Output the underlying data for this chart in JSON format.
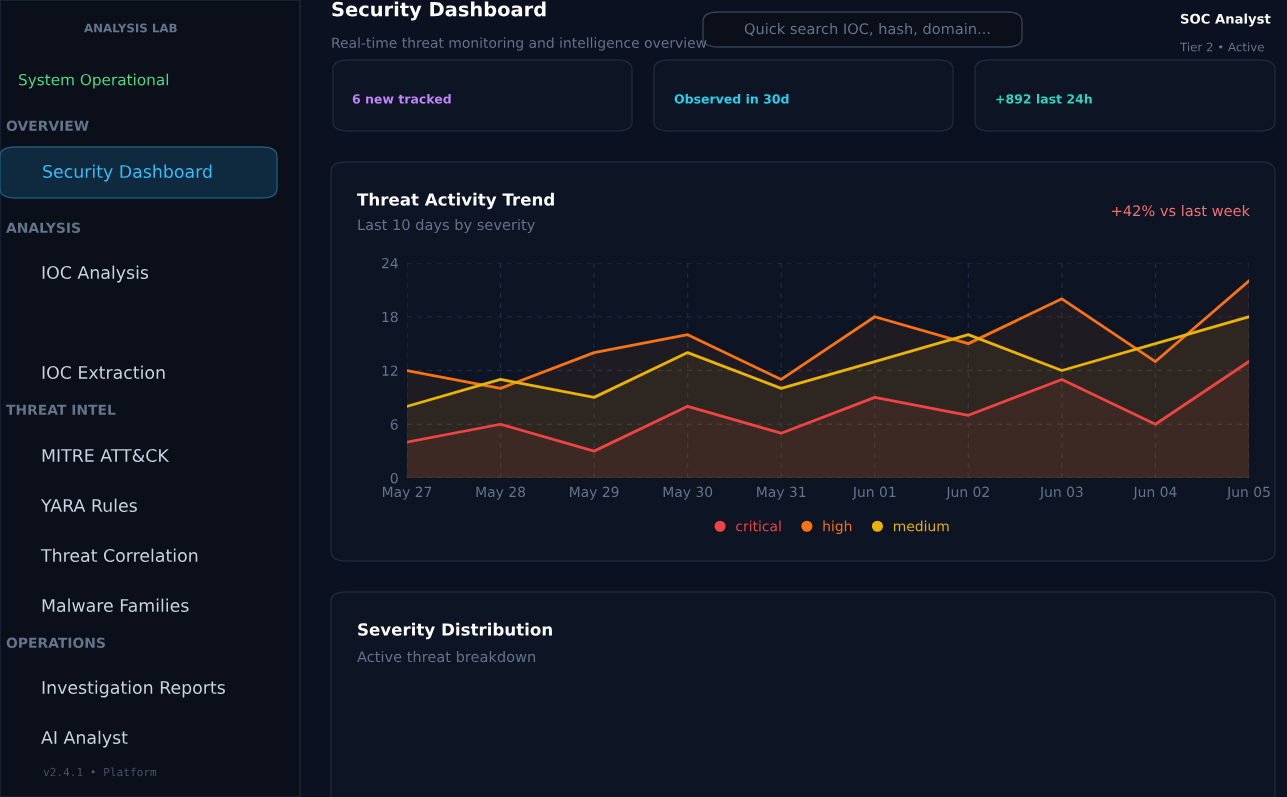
{
  "chart_data": [
    {
      "type": "area",
      "title": "Threat Activity Trend",
      "subtitle": "Last 10 days by severity",
      "annotations": [
        "+42% vs last week"
      ],
      "categories": [
        "May 27",
        "May 28",
        "May 29",
        "May 30",
        "May 31",
        "Jun 01",
        "Jun 02",
        "Jun 03",
        "Jun 04",
        "Jun 05"
      ],
      "series": [
        {
          "name": "critical",
          "color": "#ef4444",
          "values": [
            4,
            6,
            3,
            8,
            5,
            9,
            7,
            11,
            6,
            13
          ]
        },
        {
          "name": "high",
          "color": "#f97316",
          "values": [
            12,
            10,
            14,
            16,
            11,
            18,
            15,
            20,
            13,
            22
          ]
        },
        {
          "name": "medium",
          "color": "#eab308",
          "values": [
            8,
            11,
            9,
            14,
            10,
            13,
            16,
            12,
            15,
            18
          ]
        }
      ],
      "ylim": [
        0,
        24
      ],
      "yticks": [
        0,
        6,
        12,
        18,
        24
      ],
      "grid": true,
      "legend": "bottom"
    },
    {
      "type": "other",
      "annotations": [
        "ANALYSIS LAB",
        "System Operational",
        "OVERVIEW",
        "Security Dashboard",
        "ANALYSIS",
        "IOC Analysis",
        "IOC Extraction",
        "THREAT INTEL",
        "MITRE ATT&CK",
        "YARA Rules",
        "Threat Correlation",
        "Malware Families",
        "OPERATIONS",
        "Investigation Reports",
        "AI Analyst",
        "v2.4.1 • Platform",
        "Security Dashboard",
        "Real-time threat monitoring and intelligence overview",
        "Quick search IOC, hash, domain...",
        "SOC Analyst",
        "Tier 2 • Active",
        "6 new tracked",
        "Observed in 30d",
        "+892 last 24h",
        "Severity Distribution",
        "Active threat breakdown"
      ]
    }
  ]
}
